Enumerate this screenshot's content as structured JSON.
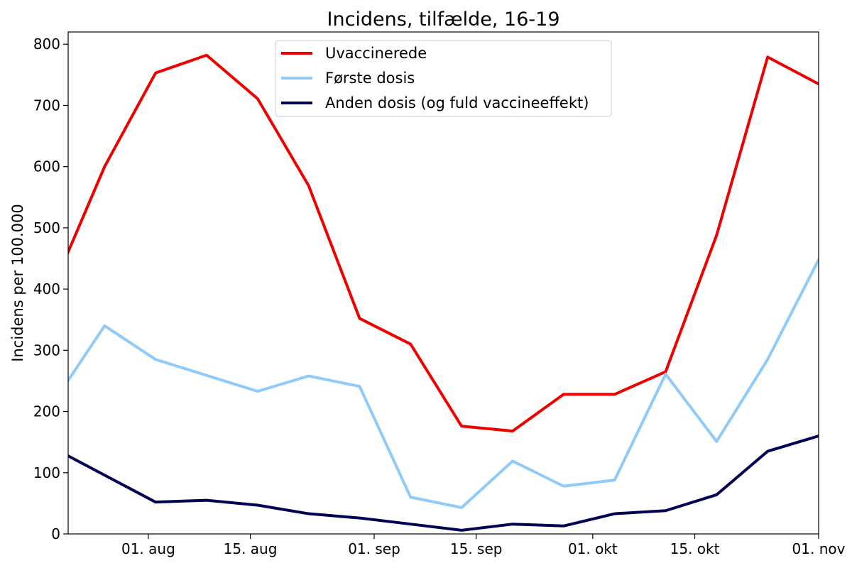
{
  "chart_data": {
    "type": "line",
    "title": "Incidens, tilfælde, 16-19",
    "xlabel": "",
    "ylabel": "Incidens per 100.000",
    "x_dates": [
      "2021-07-19",
      "2021-07-26",
      "2021-08-02",
      "2021-08-09",
      "2021-08-16",
      "2021-08-23",
      "2021-08-30",
      "2021-09-06",
      "2021-09-13",
      "2021-09-20",
      "2021-09-27",
      "2021-10-04",
      "2021-10-11",
      "2021-10-18",
      "2021-10-25",
      "2021-11-01"
    ],
    "xlim": [
      "2021-07-21",
      "2021-11-01"
    ],
    "ylim": [
      0,
      820
    ],
    "x_ticks": [
      {
        "date": "2021-08-01",
        "label": "01. aug"
      },
      {
        "date": "2021-08-15",
        "label": "15. aug"
      },
      {
        "date": "2021-09-01",
        "label": "01. sep"
      },
      {
        "date": "2021-09-15",
        "label": "15. sep"
      },
      {
        "date": "2021-10-01",
        "label": "01. okt"
      },
      {
        "date": "2021-10-15",
        "label": "15. okt"
      },
      {
        "date": "2021-11-01",
        "label": "01. nov"
      }
    ],
    "y_ticks": [
      0,
      100,
      200,
      300,
      400,
      500,
      600,
      700,
      800
    ],
    "grid": false,
    "legend_position": "top-center",
    "series": [
      {
        "name": "Uvaccinerede",
        "color": "#ee0000",
        "values": [
          405,
          600,
          753,
          782,
          711,
          569,
          352,
          310,
          176,
          168,
          228,
          228,
          265,
          488,
          779,
          735
        ]
      },
      {
        "name": "Første dosis",
        "color": "#90caf9",
        "values": [
          215,
          340,
          285,
          259,
          233,
          258,
          241,
          60,
          43,
          119,
          78,
          88,
          261,
          151,
          285,
          448
        ]
      },
      {
        "name": "Anden dosis (og fuld vaccineeffekt)",
        "color": "#000055",
        "values": [
          140,
          96,
          52,
          55,
          47,
          33,
          26,
          16,
          6,
          16,
          13,
          33,
          38,
          64,
          135,
          160
        ]
      }
    ]
  }
}
